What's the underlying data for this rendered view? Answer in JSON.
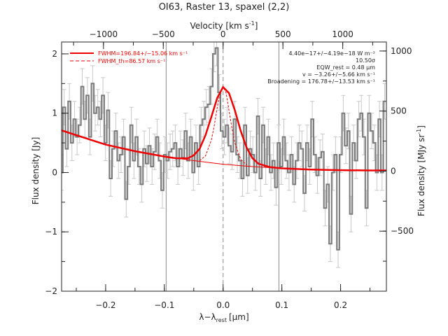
{
  "chart_data": {
    "type": "line",
    "title": "OI63, Raster 13, spaxel (2,2)",
    "xlabel": "λ−λ_rest [µm]",
    "xlabel_main": "λ−λ",
    "xlabel_sub": "rest",
    "xlabel_unit": "[µm]",
    "ylabel": "Flux density [Jy]",
    "top_axis_label": "Velocity [km s⁻¹]",
    "top_axis_main": "Velocity [km s",
    "top_axis_sup": "-1",
    "top_axis_end": "]",
    "right_axis_label": "Flux density [MJy sr⁻¹]",
    "right_axis_main": "Flux density [MJy sr",
    "right_axis_sup": "-1",
    "right_axis_end": "]",
    "xlim": [
      -0.275,
      0.278
    ],
    "ylim": [
      -2.0,
      2.2
    ],
    "top_xlim": [
      -1350,
      1365
    ],
    "right_ylim": [
      -1000,
      1075
    ],
    "x_ticks": [
      -0.2,
      -0.1,
      0.0,
      0.1,
      0.2
    ],
    "x_tick_labels": [
      "−0.2",
      "−0.1",
      "0.0",
      "0.1",
      "0.2"
    ],
    "y_ticks": [
      -2,
      -1,
      0,
      1,
      2
    ],
    "y_tick_labels": [
      "−2",
      "−1",
      "0",
      "1",
      "2"
    ],
    "top_ticks": [
      -1000,
      -500,
      0,
      500,
      1000
    ],
    "top_tick_labels": [
      "−1000",
      "−500",
      "0",
      "500",
      "1000"
    ],
    "right_ticks": [
      -500,
      0,
      500,
      1000
    ],
    "right_tick_labels": [
      "−500",
      "0",
      "500",
      "1000"
    ],
    "vertical_lines": [
      -0.097,
      0.0,
      0.095
    ],
    "legend": [
      {
        "label": "FWHM=196.84+/−15.06 km s⁻¹",
        "color": "#ee0000",
        "style": "solid"
      },
      {
        "label": "FWHM_th=86.57 km s⁻¹",
        "color": "#ee0000",
        "style": "dashed"
      }
    ],
    "annotations": [
      "4.40e−17+/−4.19e−18 W m⁻²",
      "10.50σ",
      "EQW_rest = 0.48 µm",
      "v = −3.26+/−5.66 km s⁻¹",
      "Broadening = 176.78+/−13.53 km s⁻¹"
    ],
    "series": [
      {
        "name": "data",
        "color": "#7a7a7a",
        "x": [
          -0.275,
          -0.2706,
          -0.2662,
          -0.2618,
          -0.2574,
          -0.253,
          -0.2486,
          -0.2442,
          -0.2398,
          -0.2354,
          -0.231,
          -0.2266,
          -0.2222,
          -0.2178,
          -0.2134,
          -0.209,
          -0.2046,
          -0.2002,
          -0.1958,
          -0.1914,
          -0.187,
          -0.1826,
          -0.1782,
          -0.1738,
          -0.1694,
          -0.165,
          -0.1606,
          -0.1562,
          -0.1518,
          -0.1474,
          -0.143,
          -0.1386,
          -0.1342,
          -0.1298,
          -0.1254,
          -0.121,
          -0.1166,
          -0.1122,
          -0.1078,
          -0.1034,
          -0.099,
          -0.0946,
          -0.0902,
          -0.0858,
          -0.0814,
          -0.077,
          -0.0726,
          -0.0682,
          -0.0638,
          -0.0594,
          -0.055,
          -0.0506,
          -0.0462,
          -0.0418,
          -0.0374,
          -0.033,
          -0.0286,
          -0.0242,
          -0.0198,
          -0.0154,
          -0.011,
          -0.0066,
          -0.0022,
          0.0022,
          0.0066,
          0.011,
          0.0154,
          0.0198,
          0.0242,
          0.0286,
          0.033,
          0.0374,
          0.0418,
          0.0462,
          0.0506,
          0.055,
          0.0594,
          0.0638,
          0.0682,
          0.0726,
          0.077,
          0.0814,
          0.0858,
          0.0902,
          0.0946,
          0.099,
          0.1034,
          0.1078,
          0.1122,
          0.1166,
          0.121,
          0.1254,
          0.1298,
          0.1342,
          0.1386,
          0.143,
          0.1474,
          0.1518,
          0.1562,
          0.1606,
          0.165,
          0.1694,
          0.1738,
          0.1782,
          0.1826,
          0.187,
          0.1914,
          0.1958,
          0.2002,
          0.2046,
          0.209,
          0.2134,
          0.2178,
          0.2222,
          0.2266,
          0.231,
          0.2354,
          0.2398,
          0.2442,
          0.2486,
          0.253,
          0.2574,
          0.2618,
          0.2662,
          0.2706,
          0.275
        ],
        "y": [
          0.0,
          1.1,
          0.4,
          1.2,
          0.5,
          0.9,
          0.6,
          0.8,
          1.45,
          0.9,
          1.3,
          0.6,
          1.5,
          1.0,
          1.1,
          0.9,
          1.3,
          0.5,
          1.05,
          -0.1,
          0.4,
          0.7,
          0.2,
          0.3,
          0.6,
          -0.45,
          0.1,
          0.8,
          0.2,
          0.6,
          0.1,
          -0.2,
          0.4,
          0.15,
          0.45,
          0.1,
          0.35,
          0.6,
          0.2,
          -0.3,
          0.3,
          0.2,
          0.35,
          0.4,
          0.5,
          0.1,
          0.4,
          0.25,
          0.7,
          0.2,
          0.6,
          0.0,
          0.5,
          0.1,
          0.8,
          0.9,
          1.1,
          1.15,
          1.45,
          2.0,
          2.1,
          1.35,
          0.7,
          0.6,
          0.8,
          0.45,
          0.35,
          0.9,
          0.3,
          0.2,
          -0.1,
          0.8,
          -0.05,
          0.4,
          0.3,
          0.0,
          0.95,
          -0.1,
          0.8,
          0.1,
          0.6,
          0.0,
          0.2,
          -0.25,
          0.5,
          0.1,
          0.6,
          0.2,
          0.0,
          0.3,
          -0.2,
          0.2,
          0.5,
          0.4,
          -0.35,
          0.5,
          0.1,
          0.9,
          0.3,
          -0.05,
          0.25,
          0.35,
          -0.6,
          -0.2,
          -1.2,
          0.0,
          0.3,
          -1.3,
          0.3,
          1.0,
          0.45,
          0.7,
          -0.7,
          0.5,
          0.2,
          0.9,
          1.0,
          0.6,
          -0.6,
          1.0,
          0.7,
          0.5,
          0.0,
          0.9,
          0.0,
          1.2
        ],
        "yerr": 0.3
      },
      {
        "name": "continuum",
        "color": "#ee0000",
        "x": [
          -0.275,
          -0.25,
          -0.2,
          -0.15,
          -0.1,
          -0.05,
          0.0,
          0.05,
          0.1,
          0.15,
          0.2,
          0.25,
          0.278
        ],
        "y": [
          0.71,
          0.62,
          0.47,
          0.36,
          0.27,
          0.2,
          0.14,
          0.1,
          0.07,
          0.05,
          0.04,
          0.035,
          0.035
        ]
      },
      {
        "name": "FWHM=196.84+/−15.06 km s⁻¹",
        "color": "#ee0000",
        "x": [
          -0.275,
          -0.2,
          -0.15,
          -0.1,
          -0.08,
          -0.06,
          -0.05,
          -0.04,
          -0.03,
          -0.02,
          -0.01,
          0.0,
          0.01,
          0.02,
          0.03,
          0.04,
          0.05,
          0.06,
          0.08,
          0.1,
          0.15,
          0.2,
          0.25,
          0.278
        ],
        "y": [
          0.71,
          0.47,
          0.36,
          0.27,
          0.24,
          0.24,
          0.29,
          0.4,
          0.63,
          0.94,
          1.26,
          1.44,
          1.34,
          1.05,
          0.7,
          0.42,
          0.24,
          0.15,
          0.09,
          0.07,
          0.05,
          0.04,
          0.035,
          0.035
        ]
      },
      {
        "name": "FWHM_th=86.57 km s⁻¹",
        "color": "#ee0000",
        "dashed": true,
        "x": [
          -0.04,
          -0.03,
          -0.02,
          -0.015,
          -0.01,
          -0.005,
          0.0,
          0.005,
          0.01,
          0.015,
          0.02,
          0.03,
          0.04
        ],
        "y": [
          0.2,
          0.28,
          0.55,
          0.8,
          1.1,
          1.35,
          1.44,
          1.35,
          1.05,
          0.75,
          0.5,
          0.22,
          0.13
        ]
      }
    ]
  }
}
